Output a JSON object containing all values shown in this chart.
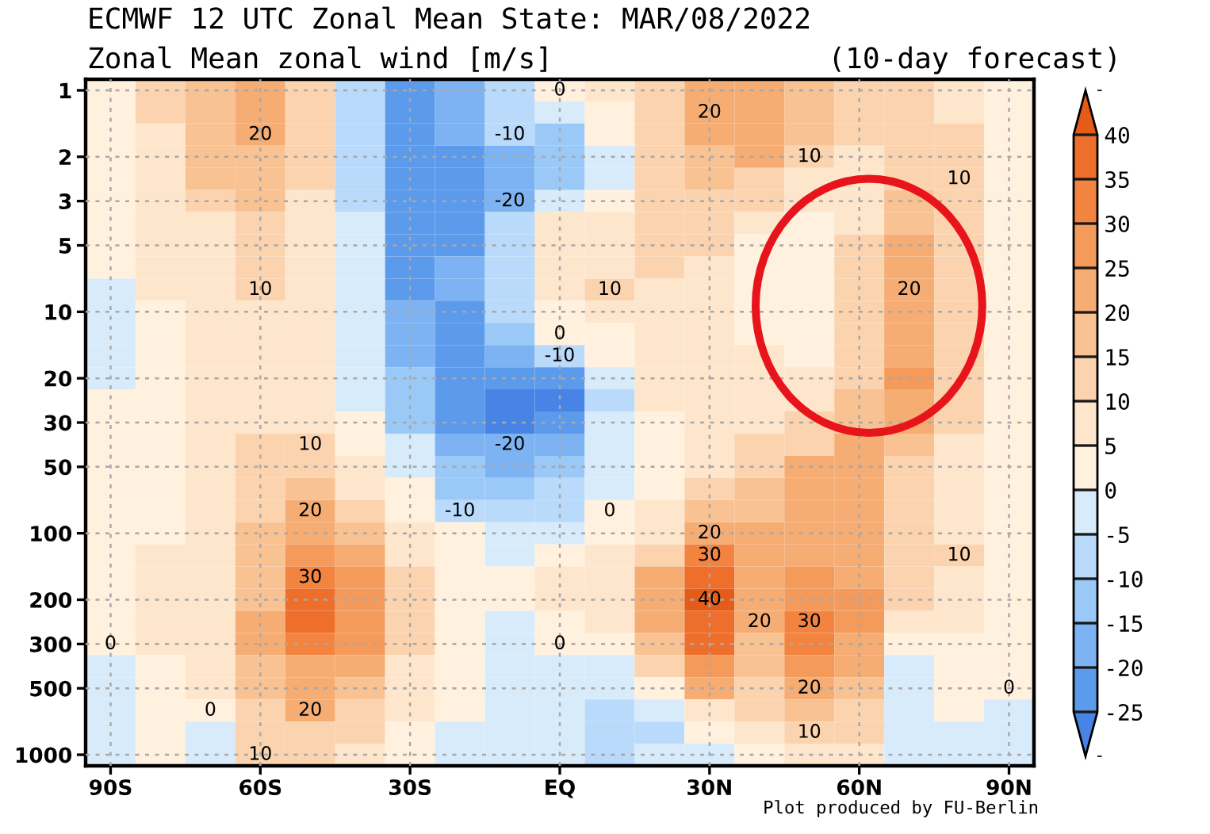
{
  "chart_data": {
    "type": "heatmap",
    "title": "ECMWF 12 UTC Zonal Mean State: MAR/08/2022",
    "subtitle": "Zonal Mean zonal wind [m/s]",
    "annotations": [
      "(10-day forecast)",
      "Plot produced by FU-Berlin"
    ],
    "categories": [
      "90S",
      null,
      null,
      "60S",
      null,
      null,
      "30S",
      null,
      null,
      "EQ",
      null,
      null,
      "30N",
      null,
      null,
      "60N",
      null,
      null,
      "90N"
    ],
    "y_categories": [
      "1",
      null,
      null,
      "2",
      null,
      "3",
      null,
      "5",
      null,
      null,
      "10",
      null,
      null,
      "20",
      null,
      "30",
      null,
      "50",
      null,
      null,
      "100",
      null,
      null,
      "200",
      null,
      "300",
      null,
      "500",
      null,
      null,
      "1000"
    ],
    "cells": [
      [
        3,
        11,
        18,
        22,
        14,
        -6,
        -22,
        -18,
        -6,
        0,
        7,
        14,
        21,
        22,
        18,
        11,
        12,
        9,
        4
      ],
      [
        3,
        10,
        18,
        22,
        14,
        -6,
        -22,
        -19,
        -10,
        -2,
        4,
        13,
        20,
        22,
        17,
        11,
        12,
        9,
        4
      ],
      [
        3,
        9,
        17,
        20,
        12,
        -6,
        -22,
        -20,
        -10,
        -12,
        1,
        12,
        20,
        21,
        15,
        10,
        12,
        10,
        4
      ],
      [
        3,
        7,
        16,
        17,
        11,
        -6,
        -23,
        -21,
        -17,
        -14,
        -5,
        10,
        18,
        21,
        10,
        9,
        12,
        10,
        1
      ],
      [
        3,
        6,
        15,
        16,
        11,
        -6,
        -23,
        -22,
        -19,
        -12,
        -2,
        11,
        16,
        13,
        8,
        9,
        13,
        10,
        3
      ],
      [
        1,
        6,
        13,
        15,
        8,
        -6,
        -23,
        -22,
        -20,
        -2,
        4,
        12,
        14,
        10,
        6,
        8,
        15,
        11,
        3
      ],
      [
        2,
        6,
        9,
        13,
        8,
        -5,
        -23,
        -21,
        -9,
        6,
        7,
        13,
        13,
        7,
        4,
        9,
        18,
        12,
        3
      ],
      [
        2,
        6,
        8,
        12,
        7,
        -5,
        -22,
        -21,
        -6,
        8,
        8,
        12,
        11,
        4,
        3,
        10,
        21,
        13,
        3
      ],
      [
        2,
        6,
        8,
        11,
        7,
        -5,
        -22,
        -20,
        -7,
        8,
        9,
        11,
        9,
        3,
        3,
        10,
        21,
        13,
        3
      ],
      [
        -1,
        5,
        7,
        10,
        6,
        -4,
        -21,
        -20,
        -6,
        7,
        10,
        9,
        8,
        3,
        3,
        11,
        20,
        13,
        3
      ],
      [
        -1,
        4,
        7,
        9,
        6,
        -4,
        -20,
        -21,
        -8,
        4,
        7,
        8,
        7,
        4,
        3,
        11,
        22,
        13,
        3
      ],
      [
        -1,
        4,
        7,
        8,
        6,
        -4,
        -19,
        -22,
        -14,
        0,
        4,
        7,
        7,
        4,
        3,
        12,
        23,
        13,
        3
      ],
      [
        -1,
        4,
        7,
        8,
        6,
        -3,
        -17,
        -22,
        -19,
        -10,
        1,
        7,
        7,
        5,
        4,
        13,
        24,
        13,
        3
      ],
      [
        -1,
        4,
        7,
        8,
        6,
        -3,
        -15,
        -23,
        -25,
        -22,
        -4,
        6,
        7,
        6,
        6,
        14,
        26,
        12,
        3
      ],
      [
        2,
        4,
        7,
        8,
        6,
        -1,
        -14,
        -22,
        -27,
        -26,
        -7,
        5,
        8,
        7,
        8,
        16,
        23,
        11,
        3
      ],
      [
        2,
        4,
        8,
        9,
        8,
        1,
        -11,
        -21,
        -26,
        -25,
        -5,
        4,
        8,
        9,
        10,
        18,
        21,
        10,
        3
      ],
      [
        3,
        4,
        8,
        10,
        10,
        4,
        -4,
        -18,
        -20,
        -20,
        -3,
        3,
        8,
        11,
        14,
        20,
        18,
        8,
        3
      ],
      [
        3,
        4,
        8,
        12,
        13,
        6,
        -1,
        -14,
        -16,
        -15,
        -2,
        3,
        9,
        13,
        21,
        21,
        13,
        7,
        3
      ],
      [
        3,
        4,
        9,
        13,
        16,
        9,
        2,
        -12,
        -12,
        -10,
        -1,
        3,
        12,
        15,
        21,
        20,
        11,
        6,
        3
      ],
      [
        3,
        4,
        9,
        14,
        20,
        13,
        4,
        -10,
        -8,
        -6,
        0,
        5,
        16,
        17,
        22,
        21,
        12,
        8,
        3
      ],
      [
        3,
        4,
        9,
        15,
        21,
        17,
        5,
        1,
        -5,
        -2,
        3,
        8,
        20,
        21,
        22,
        20,
        14,
        9,
        4
      ],
      [
        3,
        6,
        9,
        16,
        27,
        21,
        7,
        2,
        -1,
        2,
        5,
        14,
        30,
        23,
        23,
        20,
        13,
        10,
        4
      ],
      [
        3,
        6,
        8,
        17,
        30,
        26,
        12,
        4,
        2,
        6,
        8,
        20,
        38,
        22,
        26,
        23,
        12,
        8,
        4
      ],
      [
        3,
        6,
        7,
        18,
        36,
        28,
        14,
        4,
        1,
        6,
        8,
        21,
        40,
        21,
        29,
        25,
        11,
        7,
        4
      ],
      [
        3,
        6,
        7,
        20,
        35,
        28,
        13,
        3,
        -1,
        3,
        6,
        20,
        38,
        20,
        30,
        25,
        9,
        6,
        3
      ],
      [
        0,
        6,
        8,
        20,
        30,
        26,
        10,
        2,
        -2,
        0,
        3,
        18,
        35,
        16,
        30,
        24,
        4,
        3,
        3
      ],
      [
        -2,
        4,
        7,
        17,
        24,
        22,
        8,
        2,
        -2,
        -2,
        -1,
        12,
        28,
        15,
        27,
        21,
        -1,
        2,
        2
      ],
      [
        -2,
        3,
        6,
        15,
        21,
        17,
        6,
        2,
        -3,
        -3,
        -2,
        4,
        20,
        13,
        20,
        16,
        -1,
        1,
        0
      ],
      [
        -2,
        1,
        0,
        13,
        20,
        14,
        5,
        2,
        -3,
        -4,
        -6,
        -3,
        8,
        10,
        16,
        13,
        -1,
        1,
        -2
      ],
      [
        -2,
        1,
        -1,
        11,
        14,
        10,
        3,
        -1,
        -3,
        -4,
        -7,
        -6,
        2,
        6,
        10,
        10,
        -2,
        -2,
        -3
      ],
      [
        -2,
        1,
        -1,
        10,
        12,
        8,
        2,
        -4,
        -3,
        -3,
        -6,
        -5,
        -1,
        4,
        8,
        7,
        -2,
        -3,
        -3
      ]
    ],
    "cell_labels": [
      [
        null,
        null,
        null,
        null,
        null,
        null,
        null,
        null,
        null,
        "0",
        null,
        null,
        null,
        null,
        null,
        null,
        null,
        null,
        null
      ],
      [
        null,
        null,
        null,
        null,
        null,
        null,
        null,
        null,
        null,
        null,
        null,
        null,
        "20",
        null,
        null,
        null,
        null,
        null,
        null
      ],
      [
        null,
        null,
        null,
        "20",
        null,
        null,
        null,
        null,
        "-10",
        null,
        null,
        null,
        null,
        null,
        null,
        null,
        null,
        null,
        null
      ],
      [
        null,
        null,
        null,
        null,
        null,
        null,
        null,
        null,
        null,
        null,
        null,
        null,
        null,
        null,
        "10",
        null,
        null,
        null,
        null
      ],
      [
        null,
        null,
        null,
        null,
        null,
        null,
        null,
        null,
        null,
        null,
        null,
        null,
        null,
        null,
        null,
        null,
        null,
        "10",
        null
      ],
      [
        null,
        null,
        null,
        null,
        null,
        null,
        null,
        null,
        "-20",
        null,
        null,
        null,
        null,
        null,
        null,
        null,
        null,
        null,
        null
      ],
      [
        null,
        null,
        null,
        null,
        null,
        null,
        null,
        null,
        null,
        null,
        null,
        null,
        null,
        null,
        null,
        null,
        null,
        null,
        null
      ],
      [
        null,
        null,
        null,
        null,
        null,
        null,
        null,
        null,
        null,
        null,
        null,
        null,
        null,
        null,
        null,
        null,
        null,
        null,
        null
      ],
      [
        null,
        null,
        null,
        null,
        null,
        null,
        null,
        null,
        null,
        null,
        null,
        null,
        null,
        null,
        null,
        null,
        null,
        null,
        null
      ],
      [
        null,
        null,
        null,
        "10",
        null,
        null,
        null,
        null,
        null,
        null,
        "10",
        null,
        null,
        null,
        null,
        null,
        "20",
        null,
        null
      ],
      [
        null,
        null,
        null,
        null,
        null,
        null,
        null,
        null,
        null,
        null,
        null,
        null,
        null,
        null,
        null,
        null,
        null,
        null,
        null
      ],
      [
        null,
        null,
        null,
        null,
        null,
        null,
        null,
        null,
        null,
        "0",
        null,
        null,
        null,
        null,
        null,
        null,
        null,
        null,
        null
      ],
      [
        null,
        null,
        null,
        null,
        null,
        null,
        null,
        null,
        null,
        "-10",
        null,
        null,
        null,
        null,
        null,
        null,
        null,
        null,
        null
      ],
      [
        null,
        null,
        null,
        null,
        null,
        null,
        null,
        null,
        null,
        null,
        null,
        null,
        null,
        null,
        null,
        null,
        null,
        null,
        null
      ],
      [
        null,
        null,
        null,
        null,
        null,
        null,
        null,
        null,
        null,
        null,
        null,
        null,
        null,
        null,
        null,
        null,
        null,
        null,
        null
      ],
      [
        null,
        null,
        null,
        null,
        null,
        null,
        null,
        null,
        null,
        null,
        null,
        null,
        null,
        null,
        null,
        null,
        null,
        null,
        null
      ],
      [
        null,
        null,
        null,
        null,
        "10",
        null,
        null,
        null,
        "-20",
        null,
        null,
        null,
        null,
        null,
        null,
        null,
        null,
        null,
        null
      ],
      [
        null,
        null,
        null,
        null,
        null,
        null,
        null,
        null,
        null,
        null,
        null,
        null,
        null,
        null,
        null,
        null,
        null,
        null,
        null
      ],
      [
        null,
        null,
        null,
        null,
        null,
        null,
        null,
        null,
        null,
        null,
        null,
        null,
        null,
        null,
        null,
        null,
        null,
        null,
        null
      ],
      [
        null,
        null,
        null,
        null,
        "20",
        null,
        null,
        "-10",
        null,
        null,
        "0",
        null,
        null,
        null,
        null,
        null,
        null,
        null,
        null
      ],
      [
        null,
        null,
        null,
        null,
        null,
        null,
        null,
        null,
        null,
        null,
        null,
        null,
        "20",
        null,
        null,
        null,
        null,
        null,
        null
      ],
      [
        null,
        null,
        null,
        null,
        null,
        null,
        null,
        null,
        null,
        null,
        null,
        null,
        "30",
        null,
        null,
        null,
        null,
        "10",
        null
      ],
      [
        null,
        null,
        null,
        null,
        "30",
        null,
        null,
        null,
        null,
        null,
        null,
        null,
        null,
        null,
        null,
        null,
        null,
        null,
        null
      ],
      [
        null,
        null,
        null,
        null,
        null,
        null,
        null,
        null,
        null,
        null,
        null,
        null,
        "40",
        null,
        null,
        null,
        null,
        null,
        null
      ],
      [
        null,
        null,
        null,
        null,
        null,
        null,
        null,
        null,
        null,
        null,
        null,
        null,
        null,
        "20",
        "30",
        null,
        null,
        null,
        null
      ],
      [
        "0",
        null,
        null,
        null,
        null,
        null,
        null,
        null,
        null,
        "0",
        null,
        null,
        null,
        null,
        null,
        null,
        null,
        null,
        null
      ],
      [
        null,
        null,
        null,
        null,
        null,
        null,
        null,
        null,
        null,
        null,
        null,
        null,
        null,
        null,
        null,
        null,
        null,
        null,
        null
      ],
      [
        null,
        null,
        null,
        null,
        null,
        null,
        null,
        null,
        null,
        null,
        null,
        null,
        null,
        null,
        "20",
        null,
        null,
        null,
        "0"
      ],
      [
        null,
        null,
        "0",
        null,
        "20",
        null,
        null,
        null,
        null,
        null,
        null,
        null,
        null,
        null,
        null,
        null,
        null,
        null,
        null
      ],
      [
        null,
        null,
        null,
        null,
        null,
        null,
        null,
        null,
        null,
        null,
        null,
        null,
        null,
        null,
        "10",
        null,
        null,
        null,
        null
      ],
      [
        null,
        null,
        null,
        "10",
        null,
        null,
        null,
        null,
        null,
        null,
        null,
        null,
        null,
        null,
        null,
        null,
        null,
        null,
        null
      ]
    ],
    "clim": [
      -30,
      45
    ],
    "cticks": [
      -25,
      -20,
      -15,
      -10,
      -5,
      0,
      5,
      10,
      15,
      20,
      25,
      30,
      35,
      40
    ],
    "grid": true
  }
}
